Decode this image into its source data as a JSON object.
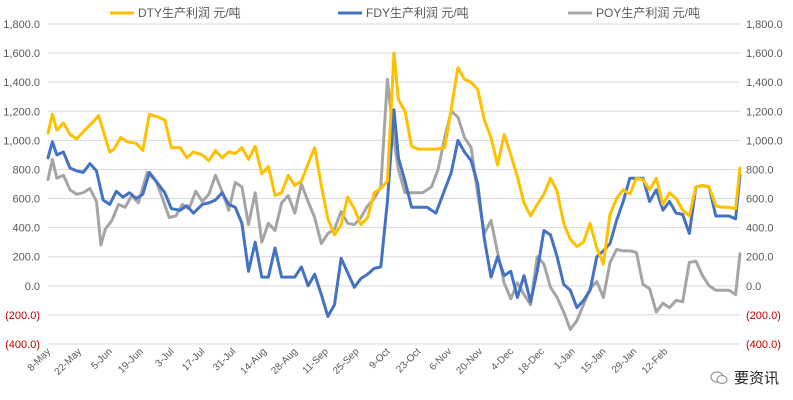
{
  "chart_data": {
    "type": "line",
    "y_ticks": [
      "1,800.0",
      "1,600.0",
      "1,400.0",
      "1,200.0",
      "1,000.0",
      "800.0",
      "600.0",
      "400.0",
      "200.0",
      "0.0",
      "(200.0)",
      "(400.0)"
    ],
    "ylim": [
      -400,
      1800
    ],
    "y2lim": [
      -400,
      1800
    ],
    "x_tick_labels": [
      "8-May",
      "22-May",
      "5-Jun",
      "19-Jun",
      "3-Jul",
      "17-Jul",
      "31-Jul",
      "14-Aug",
      "28-Aug",
      "11-Sep",
      "25-Sep",
      "9-Oct",
      "23-Oct",
      "6-Nov",
      "20-Nov",
      "4-Dec",
      "18-Dec",
      "1-Jan",
      "15-Jan",
      "29-Jan",
      "12-Feb"
    ],
    "x_start": "2018-05-08",
    "series": [
      {
        "name": "DTY生产利润 元/吨",
        "color": "#FFC000",
        "values": [
          [
            0,
            1050
          ],
          [
            2,
            1180
          ],
          [
            4,
            1070
          ],
          [
            7,
            1120
          ],
          [
            10,
            1040
          ],
          [
            13,
            1010
          ],
          [
            16,
            1060
          ],
          [
            20,
            1120
          ],
          [
            23,
            1170
          ],
          [
            26,
            1020
          ],
          [
            28,
            920
          ],
          [
            30,
            940
          ],
          [
            33,
            1020
          ],
          [
            36,
            990
          ],
          [
            40,
            980
          ],
          [
            43,
            930
          ],
          [
            46,
            1180
          ],
          [
            50,
            1160
          ],
          [
            53,
            1140
          ],
          [
            56,
            950
          ],
          [
            60,
            950
          ],
          [
            63,
            880
          ],
          [
            66,
            920
          ],
          [
            70,
            900
          ],
          [
            73,
            860
          ],
          [
            76,
            930
          ],
          [
            79,
            880
          ],
          [
            82,
            920
          ],
          [
            85,
            910
          ],
          [
            88,
            950
          ],
          [
            91,
            870
          ],
          [
            94,
            960
          ],
          [
            97,
            770
          ],
          [
            100,
            820
          ],
          [
            103,
            620
          ],
          [
            106,
            640
          ],
          [
            109,
            760
          ],
          [
            112,
            690
          ],
          [
            115,
            720
          ],
          [
            118,
            840
          ],
          [
            121,
            950
          ],
          [
            124,
            690
          ],
          [
            127,
            460
          ],
          [
            130,
            350
          ],
          [
            133,
            420
          ],
          [
            136,
            610
          ],
          [
            139,
            530
          ],
          [
            142,
            420
          ],
          [
            145,
            470
          ],
          [
            148,
            640
          ],
          [
            151,
            670
          ],
          [
            154,
            720
          ],
          [
            157,
            1600
          ],
          [
            159,
            1280
          ],
          [
            162,
            1200
          ],
          [
            165,
            960
          ],
          [
            168,
            940
          ],
          [
            172,
            940
          ],
          [
            176,
            940
          ],
          [
            180,
            950
          ],
          [
            183,
            1220
          ],
          [
            186,
            1500
          ],
          [
            189,
            1420
          ],
          [
            192,
            1400
          ],
          [
            195,
            1350
          ],
          [
            198,
            1140
          ],
          [
            201,
            1020
          ],
          [
            204,
            830
          ],
          [
            207,
            1040
          ],
          [
            210,
            900
          ],
          [
            213,
            750
          ],
          [
            216,
            570
          ],
          [
            219,
            480
          ],
          [
            222,
            560
          ],
          [
            225,
            630
          ],
          [
            228,
            740
          ],
          [
            231,
            650
          ],
          [
            234,
            430
          ],
          [
            237,
            320
          ],
          [
            240,
            270
          ],
          [
            243,
            300
          ],
          [
            246,
            430
          ],
          [
            249,
            260
          ],
          [
            252,
            150
          ],
          [
            255,
            490
          ],
          [
            258,
            600
          ],
          [
            261,
            660
          ],
          [
            264,
            630
          ],
          [
            267,
            740
          ],
          [
            270,
            730
          ],
          [
            273,
            660
          ],
          [
            276,
            740
          ],
          [
            279,
            560
          ],
          [
            282,
            640
          ],
          [
            285,
            600
          ],
          [
            288,
            520
          ],
          [
            291,
            480
          ],
          [
            294,
            680
          ],
          [
            297,
            690
          ],
          [
            300,
            680
          ],
          [
            303,
            550
          ],
          [
            306,
            540
          ],
          [
            309,
            540
          ],
          [
            312,
            530
          ],
          [
            314,
            810
          ]
        ]
      },
      {
        "name": "FDY生产利润 元/吨",
        "color": "#4472C4",
        "values": [
          [
            0,
            880
          ],
          [
            2,
            990
          ],
          [
            4,
            900
          ],
          [
            7,
            920
          ],
          [
            10,
            810
          ],
          [
            13,
            790
          ],
          [
            16,
            780
          ],
          [
            19,
            840
          ],
          [
            22,
            790
          ],
          [
            25,
            590
          ],
          [
            28,
            560
          ],
          [
            31,
            650
          ],
          [
            34,
            610
          ],
          [
            37,
            640
          ],
          [
            40,
            600
          ],
          [
            43,
            630
          ],
          [
            46,
            780
          ],
          [
            50,
            700
          ],
          [
            53,
            640
          ],
          [
            56,
            530
          ],
          [
            60,
            520
          ],
          [
            63,
            550
          ],
          [
            66,
            500
          ],
          [
            70,
            560
          ],
          [
            73,
            570
          ],
          [
            76,
            590
          ],
          [
            79,
            640
          ],
          [
            82,
            560
          ],
          [
            85,
            540
          ],
          [
            88,
            430
          ],
          [
            91,
            100
          ],
          [
            94,
            300
          ],
          [
            97,
            60
          ],
          [
            100,
            60
          ],
          [
            103,
            260
          ],
          [
            106,
            60
          ],
          [
            109,
            60
          ],
          [
            112,
            60
          ],
          [
            115,
            130
          ],
          [
            118,
            0
          ],
          [
            121,
            80
          ],
          [
            124,
            -60
          ],
          [
            127,
            -210
          ],
          [
            130,
            -130
          ],
          [
            133,
            190
          ],
          [
            136,
            90
          ],
          [
            139,
            -10
          ],
          [
            142,
            50
          ],
          [
            145,
            80
          ],
          [
            148,
            120
          ],
          [
            151,
            130
          ],
          [
            154,
            580
          ],
          [
            157,
            1210
          ],
          [
            159,
            880
          ],
          [
            162,
            720
          ],
          [
            165,
            540
          ],
          [
            168,
            540
          ],
          [
            172,
            540
          ],
          [
            176,
            500
          ],
          [
            180,
            660
          ],
          [
            183,
            780
          ],
          [
            186,
            1000
          ],
          [
            189,
            920
          ],
          [
            192,
            860
          ],
          [
            195,
            700
          ],
          [
            198,
            320
          ],
          [
            201,
            60
          ],
          [
            204,
            200
          ],
          [
            207,
            70
          ],
          [
            210,
            100
          ],
          [
            213,
            -80
          ],
          [
            216,
            70
          ],
          [
            219,
            -110
          ],
          [
            222,
            100
          ],
          [
            225,
            380
          ],
          [
            228,
            350
          ],
          [
            231,
            200
          ],
          [
            234,
            10
          ],
          [
            237,
            -30
          ],
          [
            240,
            -150
          ],
          [
            243,
            -100
          ],
          [
            246,
            -30
          ],
          [
            249,
            200
          ],
          [
            252,
            240
          ],
          [
            255,
            290
          ],
          [
            258,
            450
          ],
          [
            261,
            580
          ],
          [
            264,
            740
          ],
          [
            267,
            740
          ],
          [
            270,
            740
          ],
          [
            273,
            580
          ],
          [
            276,
            660
          ],
          [
            279,
            520
          ],
          [
            282,
            580
          ],
          [
            285,
            500
          ],
          [
            288,
            490
          ],
          [
            291,
            360
          ],
          [
            294,
            680
          ],
          [
            297,
            690
          ],
          [
            300,
            680
          ],
          [
            303,
            480
          ],
          [
            306,
            480
          ],
          [
            309,
            480
          ],
          [
            312,
            460
          ],
          [
            314,
            760
          ]
        ]
      },
      {
        "name": "POY生产利润 元/吨",
        "color": "#A5A5A5",
        "values": [
          [
            0,
            730
          ],
          [
            2,
            870
          ],
          [
            4,
            740
          ],
          [
            7,
            760
          ],
          [
            10,
            660
          ],
          [
            13,
            630
          ],
          [
            16,
            640
          ],
          [
            19,
            670
          ],
          [
            22,
            580
          ],
          [
            24,
            280
          ],
          [
            26,
            390
          ],
          [
            29,
            450
          ],
          [
            32,
            560
          ],
          [
            35,
            540
          ],
          [
            38,
            620
          ],
          [
            41,
            570
          ],
          [
            45,
            780
          ],
          [
            49,
            720
          ],
          [
            52,
            600
          ],
          [
            55,
            470
          ],
          [
            58,
            480
          ],
          [
            61,
            560
          ],
          [
            64,
            530
          ],
          [
            67,
            650
          ],
          [
            70,
            580
          ],
          [
            73,
            630
          ],
          [
            76,
            760
          ],
          [
            79,
            650
          ],
          [
            82,
            520
          ],
          [
            85,
            710
          ],
          [
            88,
            680
          ],
          [
            91,
            420
          ],
          [
            94,
            640
          ],
          [
            97,
            300
          ],
          [
            100,
            430
          ],
          [
            103,
            380
          ],
          [
            106,
            570
          ],
          [
            109,
            620
          ],
          [
            112,
            500
          ],
          [
            115,
            700
          ],
          [
            118,
            580
          ],
          [
            121,
            470
          ],
          [
            124,
            290
          ],
          [
            127,
            360
          ],
          [
            130,
            390
          ],
          [
            133,
            510
          ],
          [
            136,
            430
          ],
          [
            139,
            420
          ],
          [
            142,
            470
          ],
          [
            145,
            550
          ],
          [
            148,
            600
          ],
          [
            151,
            680
          ],
          [
            154,
            1420
          ],
          [
            157,
            1000
          ],
          [
            159,
            800
          ],
          [
            162,
            640
          ],
          [
            166,
            640
          ],
          [
            170,
            640
          ],
          [
            174,
            680
          ],
          [
            177,
            800
          ],
          [
            180,
            1020
          ],
          [
            183,
            1200
          ],
          [
            186,
            1160
          ],
          [
            189,
            1020
          ],
          [
            192,
            950
          ],
          [
            195,
            630
          ],
          [
            198,
            360
          ],
          [
            201,
            450
          ],
          [
            204,
            230
          ],
          [
            207,
            20
          ],
          [
            210,
            -90
          ],
          [
            213,
            20
          ],
          [
            216,
            -60
          ],
          [
            219,
            -130
          ],
          [
            222,
            200
          ],
          [
            225,
            150
          ],
          [
            228,
            -10
          ],
          [
            231,
            -80
          ],
          [
            234,
            -180
          ],
          [
            237,
            -300
          ],
          [
            240,
            -240
          ],
          [
            243,
            -130
          ],
          [
            246,
            -20
          ],
          [
            249,
            30
          ],
          [
            252,
            -80
          ],
          [
            255,
            160
          ],
          [
            258,
            250
          ],
          [
            261,
            240
          ],
          [
            264,
            240
          ],
          [
            267,
            230
          ],
          [
            270,
            10
          ],
          [
            273,
            -20
          ],
          [
            276,
            -180
          ],
          [
            279,
            -120
          ],
          [
            282,
            -150
          ],
          [
            285,
            -100
          ],
          [
            288,
            -110
          ],
          [
            291,
            160
          ],
          [
            294,
            170
          ],
          [
            297,
            70
          ],
          [
            300,
            0
          ],
          [
            303,
            -30
          ],
          [
            306,
            -30
          ],
          [
            309,
            -30
          ],
          [
            312,
            -60
          ],
          [
            314,
            220
          ]
        ]
      }
    ]
  },
  "watermark": {
    "text": "要资讯",
    "icon": "wechat-icon"
  }
}
